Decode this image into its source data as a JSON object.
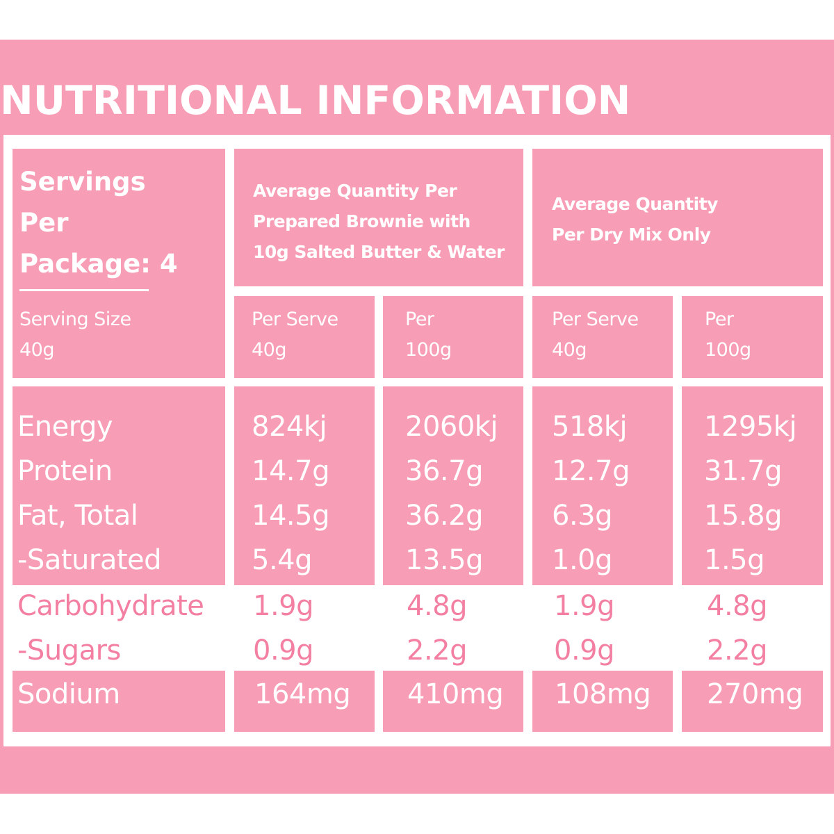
{
  "title": "NUTRITIONAL INFORMATION",
  "servings_per_package": [
    "Servings",
    "Per",
    "Package: 4"
  ],
  "serving_size": [
    "Serving Size",
    "40g"
  ],
  "groups": [
    {
      "lines": [
        "Average Quantity Per",
        "Prepared Brownie with",
        "10g Salted Butter & Water"
      ]
    },
    {
      "lines": [
        "Average Quantity",
        "Per Dry Mix Only"
      ]
    }
  ],
  "subheaders": [
    [
      "Per Serve",
      "40g"
    ],
    [
      "Per",
      "100g"
    ],
    [
      "Per Serve",
      "40g"
    ],
    [
      "Per",
      "100g"
    ]
  ],
  "nutrients": [
    "Energy",
    "Protein",
    "Fat, Total",
    "-Saturated",
    "Carbohydrate",
    "-Sugars",
    "Sodium"
  ],
  "values": [
    [
      "824kj",
      "14.7g",
      "14.5g",
      "5.4g",
      "1.9g",
      "0.9g",
      "164mg"
    ],
    [
      "2060kj",
      "36.7g",
      "36.2g",
      "13.5g",
      "4.8g",
      "2.2g",
      "410mg"
    ],
    [
      "518kj",
      "12.7g",
      "6.3g",
      "1.0g",
      "1.9g",
      "0.9g",
      "108mg"
    ],
    [
      "1295kj",
      "31.7g",
      "15.8g",
      "1.5g",
      "4.8g",
      "2.2g",
      "270mg"
    ]
  ],
  "colors": {
    "brand_pink": "#f89db6",
    "text_pink": "#f37fa2",
    "background": "#ffffff"
  }
}
